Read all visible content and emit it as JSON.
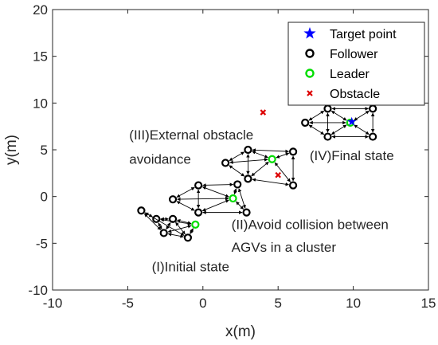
{
  "chart_data": {
    "type": "scatter",
    "xlabel": "x(m)",
    "ylabel": "y(m)",
    "xlim": [
      -10,
      15
    ],
    "ylim": [
      -10,
      20
    ],
    "xticks": [
      -10,
      -5,
      0,
      5,
      10,
      15
    ],
    "yticks": [
      -10,
      -5,
      0,
      5,
      10,
      15,
      20
    ],
    "xtick_labels": [
      "-10",
      "-5",
      "0",
      "5",
      "10",
      "15"
    ],
    "ytick_labels": [
      "-10",
      "-5",
      "0",
      "5",
      "10",
      "15",
      "20"
    ],
    "grid": false,
    "legend_position": "top-right",
    "legend": [
      {
        "name": "Target point",
        "marker": "star",
        "color": "#0000ff"
      },
      {
        "name": "Follower",
        "marker": "circle",
        "color": "#000000"
      },
      {
        "name": "Leader",
        "marker": "circle",
        "color": "#00dd00"
      },
      {
        "name": "Obstacle",
        "marker": "x",
        "color": "#dd0000"
      }
    ],
    "series": [
      {
        "name": "Target point",
        "points": [
          [
            9.9,
            8.0
          ]
        ]
      },
      {
        "name": "Leader",
        "points": [
          [
            -0.5,
            -3.0
          ],
          [
            2.0,
            -0.2
          ],
          [
            4.6,
            4.0
          ],
          [
            9.8,
            7.9
          ]
        ]
      },
      {
        "name": "Obstacle",
        "points": [
          [
            4.0,
            9.0
          ],
          [
            5.0,
            2.3
          ]
        ]
      },
      {
        "name": "Follower",
        "points": [
          [
            -4.1,
            -1.5
          ],
          [
            -3.1,
            -2.4
          ],
          [
            -2.6,
            -3.9
          ],
          [
            -2.0,
            -2.4
          ],
          [
            -1.0,
            -4.4
          ],
          [
            -2.0,
            -0.3
          ],
          [
            -0.3,
            1.2
          ],
          [
            -0.3,
            -1.7
          ],
          [
            2.3,
            1.3
          ],
          [
            2.9,
            -1.7
          ],
          [
            1.5,
            3.6
          ],
          [
            3.0,
            5.0
          ],
          [
            3.0,
            1.9
          ],
          [
            6.0,
            4.8
          ],
          [
            6.0,
            1.2
          ],
          [
            6.8,
            7.9
          ],
          [
            8.3,
            9.4
          ],
          [
            8.3,
            6.4
          ],
          [
            11.3,
            9.4
          ],
          [
            11.3,
            6.4
          ]
        ]
      }
    ],
    "annotations": [
      {
        "text": "(I)Initial state",
        "x": -3.4,
        "y": -8.0
      },
      {
        "text": "(II)Avoid collision between",
        "x": 1.9,
        "y": -3.5
      },
      {
        "text": "AGVs in a cluster",
        "x": 1.9,
        "y": -5.9
      },
      {
        "text": "(III)External obstacle",
        "x": -4.9,
        "y": 6.1
      },
      {
        "text": "avoidance",
        "x": -4.9,
        "y": 3.5
      },
      {
        "text": "(IV)Final state",
        "x": 7.1,
        "y": 3.9
      }
    ]
  }
}
